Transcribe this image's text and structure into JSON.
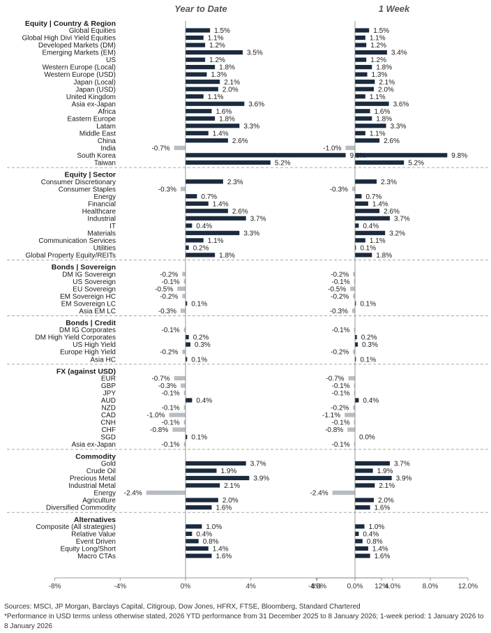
{
  "colors": {
    "positive": "#1b2a3d",
    "negative": "#b9bdc1",
    "text": "#1a1a1a",
    "header": "#555555",
    "divider": "#a6a6a6",
    "axis": "#7a7a7a"
  },
  "chart_data": {
    "type": "bar",
    "orientation": "horizontal",
    "unit": "%",
    "panels": [
      {
        "title": "Year to Date",
        "xlim": [
          -8,
          12
        ],
        "ticks": [
          -8,
          -4,
          0,
          4,
          8,
          12
        ],
        "tick_labels": [
          "-8%",
          "-4%",
          "0%",
          "4%",
          "8%",
          "12%"
        ]
      },
      {
        "title": "1 Week",
        "xlim": [
          -4,
          12
        ],
        "ticks": [
          -4,
          0,
          4,
          8,
          12
        ],
        "tick_labels": [
          "-4.0%",
          "0.0%",
          "4.0%",
          "8.0%",
          "12.0%"
        ]
      }
    ],
    "groups": [
      {
        "title": "Equity | Country & Region",
        "rows": [
          {
            "label": "Global Equities",
            "ytd": 1.5,
            "wk": 1.5
          },
          {
            "label": "Global High Divi Yield Equities",
            "ytd": 1.1,
            "wk": 1.1
          },
          {
            "label": "Developed Markets (DM)",
            "ytd": 1.2,
            "wk": 1.2
          },
          {
            "label": "Emerging Markets (EM)",
            "ytd": 3.5,
            "wk": 3.4
          },
          {
            "label": "US",
            "ytd": 1.2,
            "wk": 1.2
          },
          {
            "label": "Western Europe (Local)",
            "ytd": 1.8,
            "wk": 1.8
          },
          {
            "label": "Western Europe (USD)",
            "ytd": 1.3,
            "wk": 1.3
          },
          {
            "label": "Japan (Local)",
            "ytd": 2.1,
            "wk": 2.1
          },
          {
            "label": "Japan (USD)",
            "ytd": 2.0,
            "wk": 2.0
          },
          {
            "label": "United Kingdom",
            "ytd": 1.1,
            "wk": 1.1
          },
          {
            "label": "Asia ex-Japan",
            "ytd": 3.6,
            "wk": 3.6
          },
          {
            "label": "Africa",
            "ytd": 1.6,
            "wk": 1.6
          },
          {
            "label": "Eastern Europe",
            "ytd": 1.8,
            "wk": 1.8
          },
          {
            "label": "Latam",
            "ytd": 3.3,
            "wk": 3.3
          },
          {
            "label": "Middle East",
            "ytd": 1.4,
            "wk": 1.1
          },
          {
            "label": "China",
            "ytd": 2.6,
            "wk": 2.6
          },
          {
            "label": "India",
            "ytd": -0.7,
            "wk": -1.0
          },
          {
            "label": "South Korea",
            "ytd": 9.8,
            "wk": 9.8
          },
          {
            "label": "Taiwan",
            "ytd": 5.2,
            "wk": 5.2
          }
        ]
      },
      {
        "title": "Equity | Sector",
        "rows": [
          {
            "label": "Consumer Discretionary",
            "ytd": 2.3,
            "wk": 2.3
          },
          {
            "label": "Consumer Staples",
            "ytd": -0.3,
            "wk": -0.3
          },
          {
            "label": "Energy",
            "ytd": 0.7,
            "wk": 0.7
          },
          {
            "label": "Financial",
            "ytd": 1.4,
            "wk": 1.4
          },
          {
            "label": "Healthcare",
            "ytd": 2.6,
            "wk": 2.6
          },
          {
            "label": "Industrial",
            "ytd": 3.7,
            "wk": 3.7
          },
          {
            "label": "IT",
            "ytd": 0.4,
            "wk": 0.4
          },
          {
            "label": "Materials",
            "ytd": 3.3,
            "wk": 3.2
          },
          {
            "label": "Communication Services",
            "ytd": 1.1,
            "wk": 1.1
          },
          {
            "label": "Utilities",
            "ytd": 0.2,
            "wk": 0.1
          },
          {
            "label": "Global Property Equity/REITs",
            "ytd": 1.8,
            "wk": 1.8
          }
        ]
      },
      {
        "title": "Bonds | Sovereign",
        "rows": [
          {
            "label": "DM IG Sovereign",
            "ytd": -0.2,
            "wk": -0.2
          },
          {
            "label": "US Sovereign",
            "ytd": -0.1,
            "wk": -0.1
          },
          {
            "label": "EU Sovereign",
            "ytd": -0.5,
            "wk": -0.5
          },
          {
            "label": "EM Sovereign HC",
            "ytd": -0.2,
            "wk": -0.2
          },
          {
            "label": "EM Sovereign LC",
            "ytd": 0.1,
            "wk": 0.1
          },
          {
            "label": "Asia EM LC",
            "ytd": -0.3,
            "wk": -0.3
          }
        ]
      },
      {
        "title": "Bonds | Credit",
        "rows": [
          {
            "label": "DM IG Corporates",
            "ytd": -0.1,
            "wk": -0.1
          },
          {
            "label": "DM High Yield Corporates",
            "ytd": 0.2,
            "wk": 0.2
          },
          {
            "label": "US High Yield",
            "ytd": 0.3,
            "wk": 0.3
          },
          {
            "label": "Europe High Yield",
            "ytd": -0.2,
            "wk": -0.2
          },
          {
            "label": "Asia HC",
            "ytd": 0.1,
            "wk": 0.1
          }
        ]
      },
      {
        "title": "FX (against USD)",
        "rows": [
          {
            "label": "EUR",
            "ytd": -0.7,
            "wk": -0.7
          },
          {
            "label": "GBP",
            "ytd": -0.3,
            "wk": -0.1
          },
          {
            "label": "JPY",
            "ytd": -0.1,
            "wk": -0.1
          },
          {
            "label": "AUD",
            "ytd": 0.4,
            "wk": 0.4
          },
          {
            "label": "NZD",
            "ytd": -0.1,
            "wk": -0.2
          },
          {
            "label": "CAD",
            "ytd": -1.0,
            "wk": -1.1
          },
          {
            "label": "CNH",
            "ytd": -0.1,
            "wk": -0.1
          },
          {
            "label": "CHF",
            "ytd": -0.8,
            "wk": -0.8
          },
          {
            "label": "SGD",
            "ytd": 0.1,
            "wk": 0.0
          },
          {
            "label": "Asia ex-Japan",
            "ytd": -0.1,
            "wk": -0.1
          }
        ]
      },
      {
        "title": "Commodity",
        "rows": [
          {
            "label": "Gold",
            "ytd": 3.7,
            "wk": 3.7
          },
          {
            "label": "Crude Oil",
            "ytd": 1.9,
            "wk": 1.9
          },
          {
            "label": "Precious Metal",
            "ytd": 3.9,
            "wk": 3.9
          },
          {
            "label": "Industrial Metal",
            "ytd": 2.1,
            "wk": 2.1
          },
          {
            "label": "Energy",
            "ytd": -2.4,
            "wk": -2.4
          },
          {
            "label": "Agriculture",
            "ytd": 2.0,
            "wk": 2.0
          },
          {
            "label": "Diversified Commodity",
            "ytd": 1.6,
            "wk": 1.6
          }
        ]
      },
      {
        "title": "Alternatives",
        "rows": [
          {
            "label": "Composite (All strategies)",
            "ytd": 1.0,
            "wk": 1.0
          },
          {
            "label": "Relative Value",
            "ytd": 0.4,
            "wk": 0.4
          },
          {
            "label": "Event Driven",
            "ytd": 0.8,
            "wk": 0.8
          },
          {
            "label": "Equity Long/Short",
            "ytd": 1.4,
            "wk": 1.4
          },
          {
            "label": "Macro CTAs",
            "ytd": 1.6,
            "wk": 1.6
          }
        ]
      }
    ]
  },
  "footer": {
    "sources": "Sources: MSCI, JP Morgan, Barclays Capital, Citigroup, Dow Jones, HFRX, FTSE, Bloomberg, Standard Chartered",
    "note": "*Performance in USD terms unless otherwise stated, 2026 YTD performance from 31 December 2025 to 8 January 2026; 1-week period: 1 January 2026 to 8 January 2026"
  }
}
